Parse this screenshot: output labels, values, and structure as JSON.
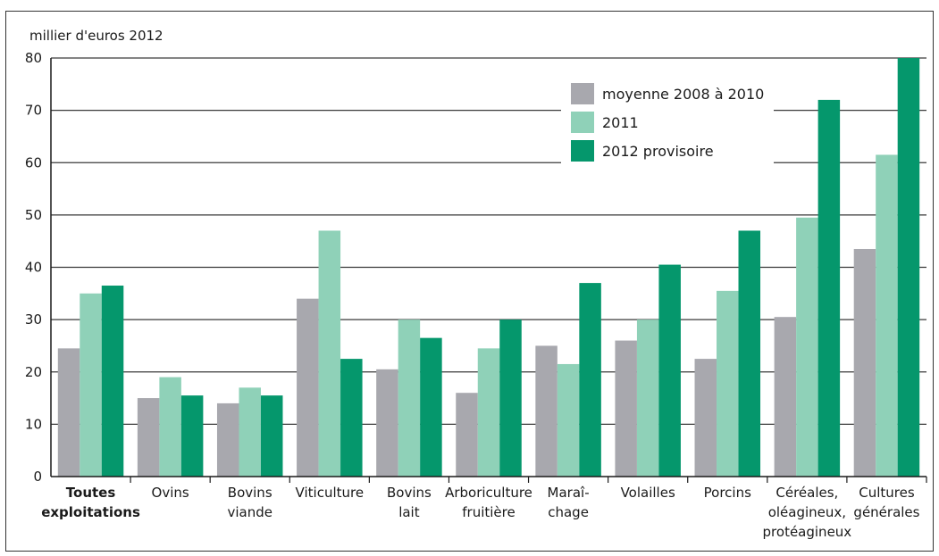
{
  "chart_data": {
    "type": "bar",
    "unit_label": "millier d'euros 2012",
    "ylim": [
      0,
      80
    ],
    "yticks": [
      0,
      10,
      20,
      30,
      40,
      50,
      60,
      70,
      80
    ],
    "grid": true,
    "legend_position": "top-right",
    "categories": [
      [
        "Toutes",
        "exploitations"
      ],
      [
        "Ovins"
      ],
      [
        "Bovins",
        "viande"
      ],
      [
        "Viticulture"
      ],
      [
        "Bovins",
        "lait"
      ],
      [
        "Arboriculture",
        "fruitière"
      ],
      [
        "Maraî-",
        "chage"
      ],
      [
        "Volailles"
      ],
      [
        "Porcins"
      ],
      [
        "Céréales,",
        "oléagineux,",
        "protéagineux"
      ],
      [
        "Cultures",
        "générales"
      ]
    ],
    "series": [
      {
        "name": "moyenne 2008 à 2010",
        "color": "#a8a8ae",
        "values": [
          24.5,
          15,
          14,
          34,
          20.5,
          16,
          25,
          26,
          22.5,
          30.5,
          43.5
        ]
      },
      {
        "name": "2011",
        "color": "#8fd1b8",
        "values": [
          35,
          19,
          17,
          47,
          30,
          24.5,
          21.5,
          30,
          35.5,
          49.5,
          61.5
        ]
      },
      {
        "name": "2012 provisoire",
        "color": "#05976c",
        "values": [
          36.5,
          15.5,
          15.5,
          22.5,
          26.5,
          30,
          37,
          40.5,
          47,
          72,
          80
        ]
      }
    ]
  }
}
